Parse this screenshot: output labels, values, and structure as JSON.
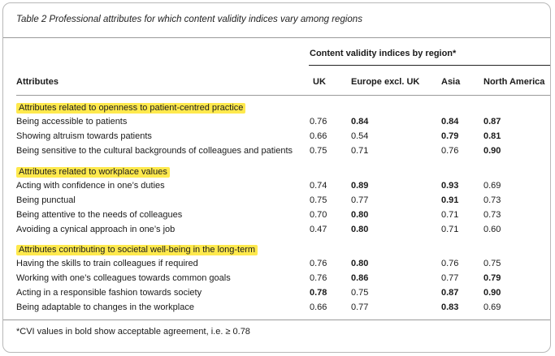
{
  "caption": "Table 2  Professional attributes for which content validity indices vary among regions",
  "group_header": "Content validity indices by region*",
  "columns": [
    "Attributes",
    "UK",
    "Europe excl. UK",
    "Asia",
    "North America"
  ],
  "sections": [
    {
      "title": "Attributes related to openness to patient-centred practice",
      "rows": [
        {
          "label": "Being accessible to patients",
          "values": [
            "0.76",
            "0.84",
            "0.84",
            "0.87"
          ],
          "bold": [
            false,
            true,
            true,
            true
          ]
        },
        {
          "label": "Showing altruism towards patients",
          "values": [
            "0.66",
            "0.54",
            "0.79",
            "0.81"
          ],
          "bold": [
            false,
            false,
            true,
            true
          ]
        },
        {
          "label": "Being sensitive to the cultural backgrounds of colleagues and patients",
          "values": [
            "0.75",
            "0.71",
            "0.76",
            "0.90"
          ],
          "bold": [
            false,
            false,
            false,
            true
          ]
        }
      ]
    },
    {
      "title": "Attributes related to workplace values",
      "rows": [
        {
          "label": "Acting with confidence in one’s duties",
          "values": [
            "0.74",
            "0.89",
            "0.93",
            "0.69"
          ],
          "bold": [
            false,
            true,
            true,
            false
          ]
        },
        {
          "label": "Being punctual",
          "values": [
            "0.75",
            "0.77",
            "0.91",
            "0.73"
          ],
          "bold": [
            false,
            false,
            true,
            false
          ]
        },
        {
          "label": "Being attentive to the needs of colleagues",
          "values": [
            "0.70",
            "0.80",
            "0.71",
            "0.73"
          ],
          "bold": [
            false,
            true,
            false,
            false
          ]
        },
        {
          "label": "Avoiding a cynical approach in one’s job",
          "values": [
            "0.47",
            "0.80",
            "0.71",
            "0.60"
          ],
          "bold": [
            false,
            true,
            false,
            false
          ]
        }
      ]
    },
    {
      "title": "Attributes contributing to societal well-being in the long-term",
      "rows": [
        {
          "label": "Having the skills to train colleagues if required",
          "values": [
            "0.76",
            "0.80",
            "0.76",
            "0.75"
          ],
          "bold": [
            false,
            true,
            false,
            false
          ]
        },
        {
          "label": "Working with one’s colleagues towards common goals",
          "values": [
            "0.76",
            "0.86",
            "0.77",
            "0.79"
          ],
          "bold": [
            false,
            true,
            false,
            true
          ]
        },
        {
          "label": "Acting in a responsible fashion towards society",
          "values": [
            "0.78",
            "0.75",
            "0.87",
            "0.90"
          ],
          "bold": [
            true,
            false,
            true,
            true
          ]
        },
        {
          "label": "Being adaptable to changes in the workplace",
          "values": [
            "0.66",
            "0.77",
            "0.83",
            "0.69"
          ],
          "bold": [
            false,
            false,
            true,
            false
          ]
        }
      ]
    }
  ],
  "footnote": "*CVI values in bold show acceptable agreement, i.e. ≥ 0.78",
  "colors": {
    "highlight": "#ffe94d"
  }
}
